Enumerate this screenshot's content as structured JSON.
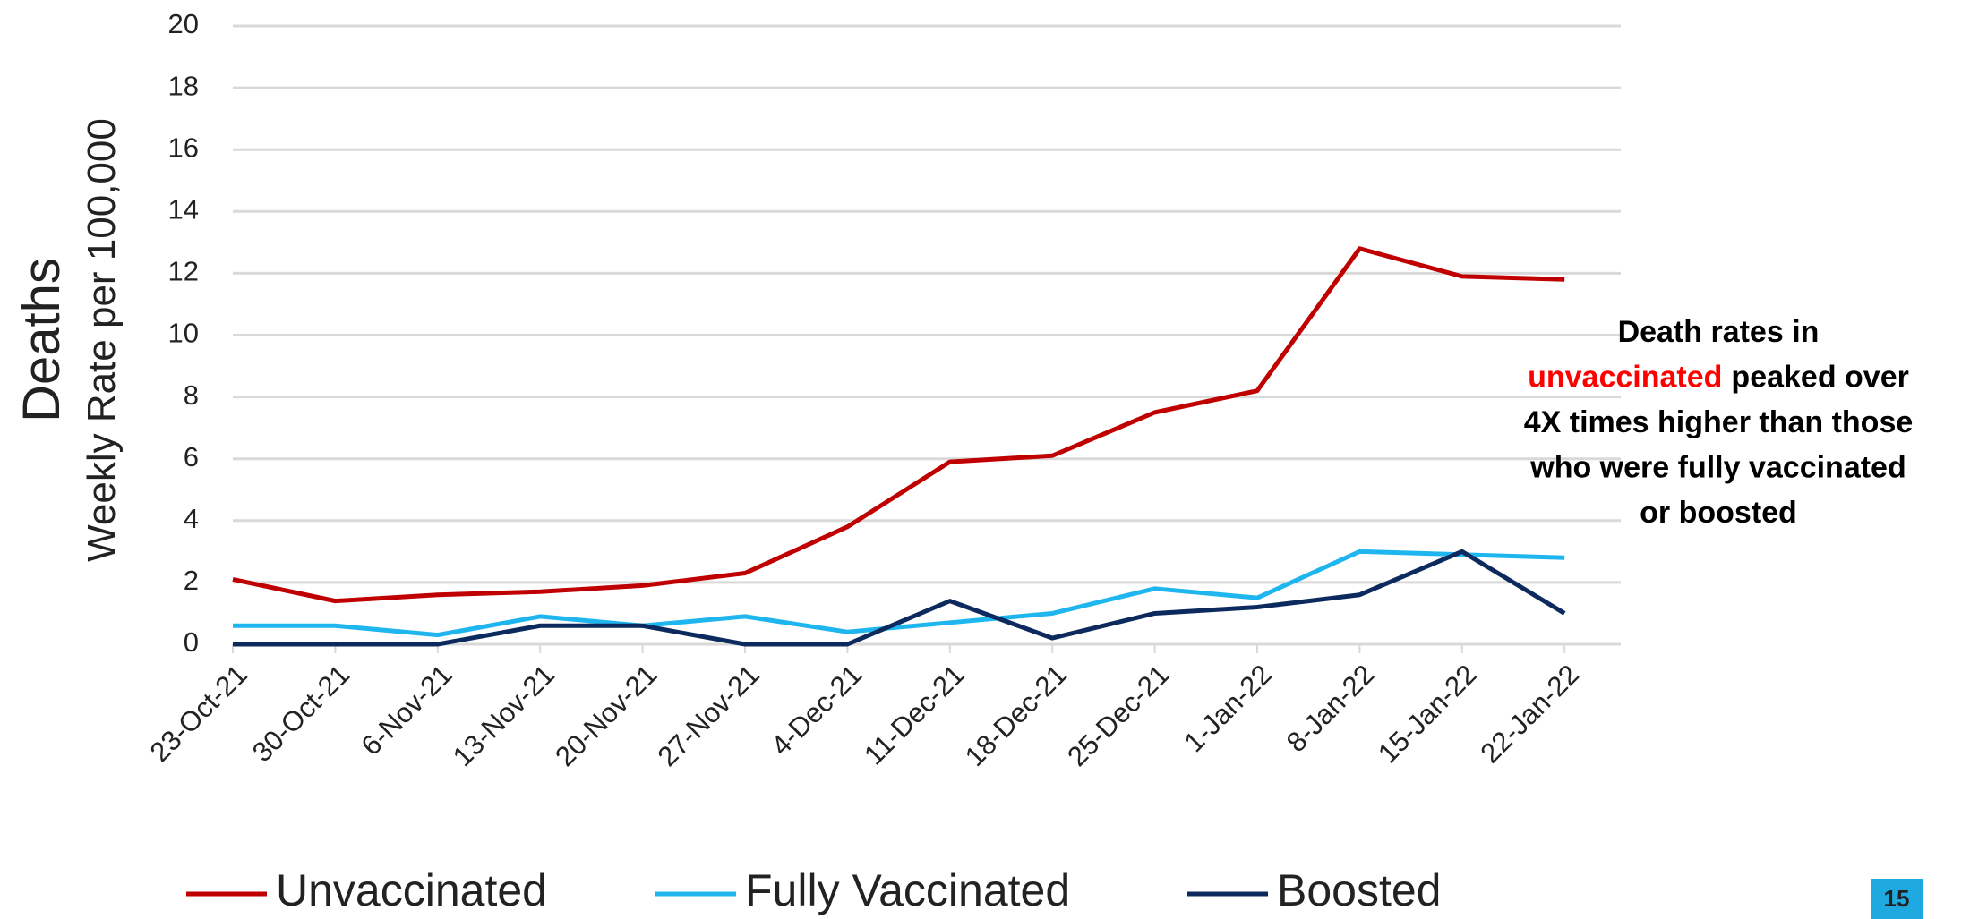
{
  "chart_data": {
    "type": "line",
    "y_title": "Deaths",
    "y_label": "Weekly Rate per 100,000",
    "x": [
      "23-Oct-21",
      "30-Oct-21",
      "6-Nov-21",
      "13-Nov-21",
      "20-Nov-21",
      "27-Nov-21",
      "4-Dec-21",
      "11-Dec-21",
      "18-Dec-21",
      "25-Dec-21",
      "1-Jan-22",
      "8-Jan-22",
      "15-Jan-22",
      "22-Jan-22"
    ],
    "series": [
      {
        "name": "Unvaccinated",
        "color": "#c00000",
        "values": [
          2.1,
          1.4,
          1.6,
          1.7,
          1.9,
          2.3,
          3.8,
          5.9,
          6.1,
          7.5,
          8.2,
          12.8,
          11.9,
          11.8
        ]
      },
      {
        "name": "Fully Vaccinated",
        "color": "#1fb6ef",
        "values": [
          0.6,
          0.6,
          0.3,
          0.9,
          0.6,
          0.9,
          0.4,
          0.7,
          1.0,
          1.8,
          1.5,
          3.0,
          2.9,
          2.8
        ]
      },
      {
        "name": "Boosted",
        "color": "#0d2a5e",
        "values": [
          0,
          0,
          0,
          0.6,
          0.6,
          0,
          0,
          1.4,
          0.2,
          1.0,
          1.2,
          1.6,
          3.0,
          1.0
        ]
      }
    ],
    "ylim": [
      0,
      20
    ],
    "yticks": [
      0,
      2,
      4,
      6,
      8,
      10,
      12,
      14,
      16,
      18,
      20
    ],
    "grid": true,
    "annotation_lines": [
      "Death rates in",
      [
        "unvaccinated",
        "peaked over"
      ],
      "4X times higher than those",
      "who were fully vaccinated",
      "or boosted"
    ],
    "annotation_highlight_color": "#ff0000"
  },
  "page_number": "15"
}
